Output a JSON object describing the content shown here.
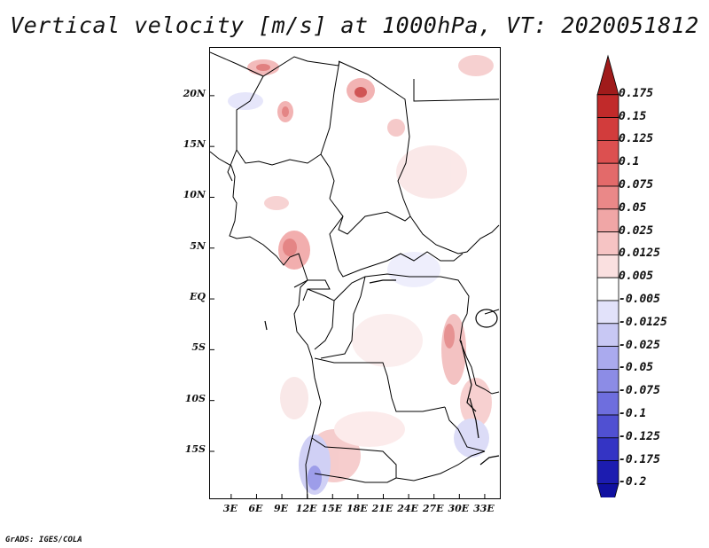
{
  "title": "Vertical velocity [m/s] at 1000hPa, VT: 2020051812",
  "credit": "GrADS: IGES/COLA",
  "map": {
    "lat_labels": [
      "20N",
      "15N",
      "10N",
      "5N",
      "EQ",
      "5S",
      "10S",
      "15S"
    ],
    "lat_values": [
      20,
      15,
      10,
      5,
      0,
      -5,
      -10,
      -15
    ],
    "lon_labels": [
      "3E",
      "6E",
      "9E",
      "12E",
      "15E",
      "18E",
      "21E",
      "24E",
      "27E",
      "30E",
      "33E"
    ],
    "lon_values": [
      3,
      6,
      9,
      12,
      15,
      18,
      21,
      24,
      27,
      30,
      33
    ],
    "lon_range": [
      0.5,
      35
    ],
    "lat_range": [
      -19.8,
      24.7
    ]
  },
  "colorbar": {
    "labels": [
      "0.175",
      "0.15",
      "0.125",
      "0.1",
      "0.075",
      "0.05",
      "0.025",
      "0.0125",
      "0.005",
      "-0.005",
      "-0.0125",
      "-0.025",
      "-0.05",
      "-0.075",
      "-0.1",
      "-0.125",
      "-0.175",
      "-0.2"
    ],
    "colors": [
      "#a01b1b",
      "#c12a2a",
      "#d23c3c",
      "#dc5050",
      "#e36a6a",
      "#ea8888",
      "#f0a6a6",
      "#f6c4c4",
      "#fae0e0",
      "#ffffff",
      "#e2e2fa",
      "#c8c8f4",
      "#aaaaee",
      "#8c8ce6",
      "#6e6ede",
      "#5050d2",
      "#3434c4",
      "#1c1cb0",
      "#1010a0"
    ]
  }
}
